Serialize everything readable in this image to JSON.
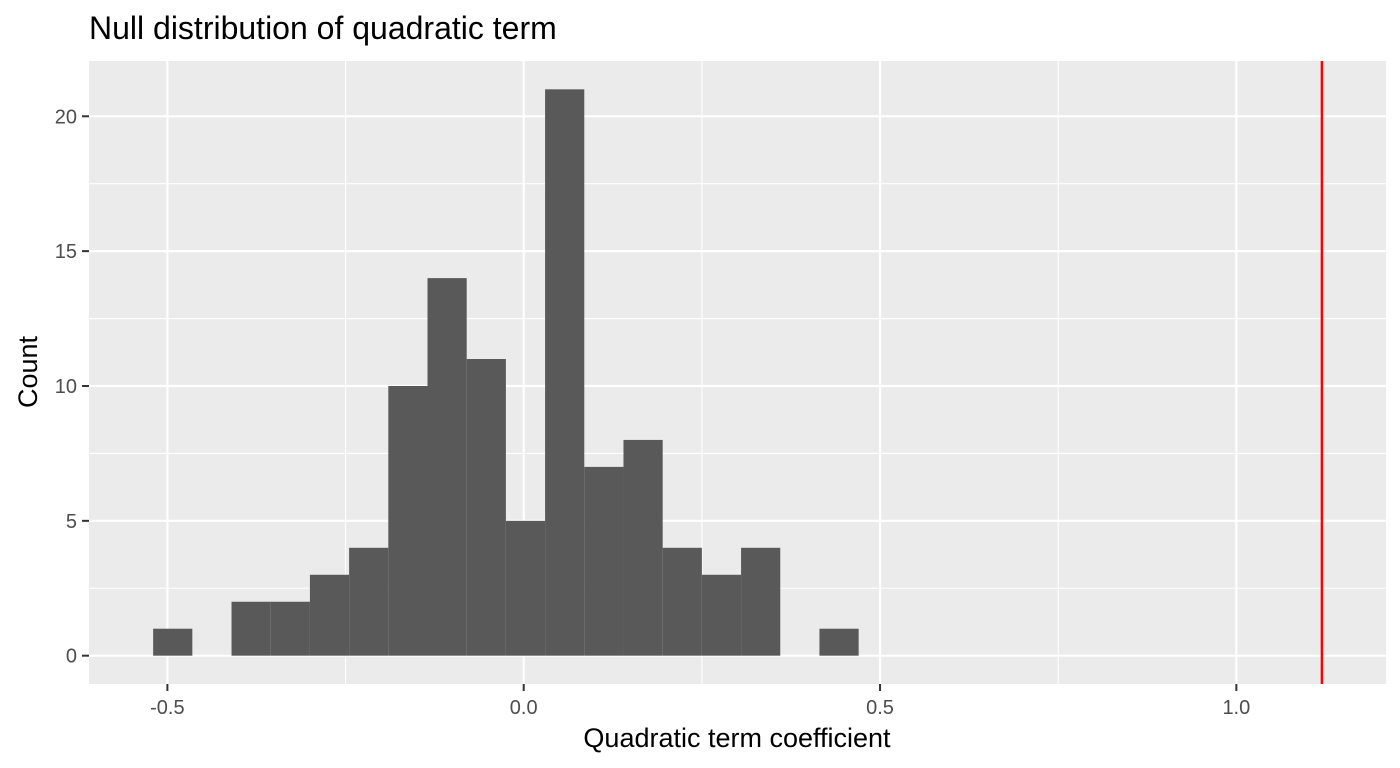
{
  "chart_data": {
    "type": "bar",
    "title": "Null distribution of quadratic term",
    "xlabel": "Quadratic term coefficient",
    "ylabel": "Count",
    "xlim": [
      -0.61,
      1.21
    ],
    "ylim": [
      -1.05,
      22.05
    ],
    "x_ticks": [
      -0.5,
      0.0,
      0.5,
      1.0
    ],
    "x_tick_labels": [
      "-0.5",
      "0.0",
      "0.5",
      "1.0"
    ],
    "y_ticks": [
      0,
      5,
      10,
      15,
      20
    ],
    "y_tick_labels": [
      "0",
      "5",
      "10",
      "15",
      "20"
    ],
    "bin_width": 0.055,
    "bin_centers": [
      -0.4925,
      -0.4375,
      -0.3825,
      -0.3275,
      -0.2725,
      -0.2175,
      -0.1625,
      -0.1075,
      -0.0525,
      0.0025,
      0.0575,
      0.1125,
      0.1675,
      0.2225,
      0.2775,
      0.3325,
      0.3875,
      0.4425
    ],
    "counts": [
      1,
      0,
      2,
      2,
      3,
      4,
      10,
      14,
      11,
      5,
      21,
      7,
      8,
      4,
      3,
      4,
      0,
      1
    ],
    "bar_color": "#595959",
    "panel_background": "#ebebeb",
    "gridline_color": "#ffffff",
    "observed_value": 1.12,
    "observed_line_color": "#ff0000",
    "grid": true,
    "legend": "none"
  }
}
